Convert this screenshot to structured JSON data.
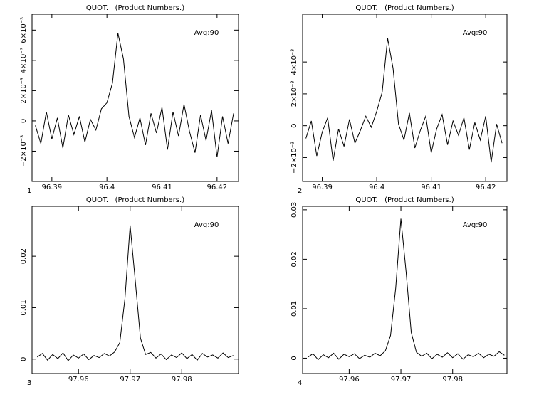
{
  "chart_data": [
    {
      "type": "line",
      "title": "QUOT.   (Product Numbers.)",
      "annotation": "Avg:90",
      "panel_label": "1",
      "x": [
        96.387,
        96.388,
        96.389,
        96.39,
        96.391,
        96.392,
        96.393,
        96.394,
        96.395,
        96.396,
        96.397,
        96.398,
        96.399,
        96.4,
        96.401,
        96.402,
        96.403,
        96.404,
        96.405,
        96.406,
        96.407,
        96.408,
        96.409,
        96.41,
        96.411,
        96.412,
        96.413,
        96.414,
        96.415,
        96.416,
        96.417,
        96.418,
        96.419,
        96.42,
        96.421,
        96.422,
        96.423
      ],
      "values": [
        -0.0003,
        -0.0015,
        0.0006,
        -0.0012,
        0.0002,
        -0.0018,
        0.0004,
        -0.0009,
        0.0003,
        -0.0014,
        0.0001,
        -0.0006,
        0.0008,
        0.0012,
        0.0025,
        0.0058,
        0.0041,
        0.0003,
        -0.0011,
        0.0002,
        -0.0016,
        0.0005,
        -0.0008,
        0.0009,
        -0.0019,
        0.0006,
        -0.001,
        0.0011,
        -0.0007,
        -0.0021,
        0.0004,
        -0.0013,
        0.0007,
        -0.0024,
        0.0003,
        -0.0015,
        0.0005
      ],
      "color": "#000000",
      "xlim": [
        96.3864,
        96.4239
      ],
      "xticks": [
        96.39,
        96.4,
        96.41,
        96.42
      ],
      "ylim": [
        -0.004,
        0.00705
      ],
      "yticks": [
        {
          "value": -0.002,
          "label": "−2×10⁻³"
        },
        0,
        {
          "value": 0.002,
          "label": "2×10⁻³"
        },
        {
          "value": 0.004,
          "label": "4×10⁻³"
        },
        {
          "value": 0.006,
          "label": "6×10⁻³"
        }
      ]
    },
    {
      "type": "line",
      "title": "QUOT.   (Product Numbers.)",
      "annotation": "Avg:90",
      "panel_label": "2",
      "x": [
        96.387,
        96.388,
        96.389,
        96.39,
        96.391,
        96.392,
        96.393,
        96.394,
        96.395,
        96.396,
        96.397,
        96.398,
        96.399,
        96.4,
        96.401,
        96.402,
        96.403,
        96.404,
        96.405,
        96.406,
        96.407,
        96.408,
        96.409,
        96.41,
        96.411,
        96.412,
        96.413,
        96.414,
        96.415,
        96.416,
        96.417,
        96.418,
        96.419,
        96.42,
        96.421,
        96.422,
        96.423
      ],
      "values": [
        -0.0008,
        0.0003,
        -0.0019,
        -0.0004,
        0.0005,
        -0.0022,
        -0.0002,
        -0.0013,
        0.0004,
        -0.0011,
        -0.0003,
        0.0006,
        -0.0001,
        0.0009,
        0.0021,
        0.0055,
        0.0036,
        0.0001,
        -0.0009,
        0.0008,
        -0.0014,
        -0.0003,
        0.0006,
        -0.0017,
        -0.0002,
        0.0007,
        -0.0012,
        0.0003,
        -0.0006,
        0.0005,
        -0.0015,
        0.0002,
        -0.0009,
        0.0006,
        -0.0023,
        0.0001,
        -0.0011
      ],
      "color": "#000000",
      "xlim": [
        96.3864,
        96.4239
      ],
      "xticks": [
        96.39,
        96.4,
        96.41,
        96.42
      ],
      "ylim": [
        -0.0035,
        0.007
      ],
      "yticks": [
        {
          "value": -0.002,
          "label": "−2×10⁻³"
        },
        0,
        {
          "value": 0.002,
          "label": "2×10⁻³"
        },
        {
          "value": 0.004,
          "label": "4×10⁻³"
        }
      ]
    },
    {
      "type": "line",
      "title": "QUOT.   (Product Numbers.)",
      "annotation": "Avg:90",
      "panel_label": "3",
      "x": [
        97.952,
        97.953,
        97.954,
        97.955,
        97.956,
        97.957,
        97.958,
        97.959,
        97.96,
        97.961,
        97.962,
        97.963,
        97.964,
        97.965,
        97.966,
        97.967,
        97.968,
        97.969,
        97.97,
        97.971,
        97.972,
        97.973,
        97.974,
        97.975,
        97.976,
        97.977,
        97.978,
        97.979,
        97.98,
        97.981,
        97.982,
        97.983,
        97.984,
        97.985,
        97.986,
        97.987,
        97.988,
        97.989,
        97.99
      ],
      "values": [
        0.0004,
        0.0011,
        -0.0002,
        0.0009,
        0.0001,
        0.0012,
        -0.0003,
        0.0008,
        0.0002,
        0.001,
        -0.0001,
        0.0007,
        0.0003,
        0.0011,
        0.0006,
        0.0014,
        0.0032,
        0.0118,
        0.026,
        0.0152,
        0.0041,
        0.0009,
        0.0013,
        0.0002,
        0.001,
        -0.0001,
        0.0008,
        0.0003,
        0.0012,
        0.0001,
        0.0009,
        -0.0002,
        0.0011,
        0.0004,
        0.0008,
        0.0002,
        0.0012,
        0.0003,
        0.0007
      ],
      "color": "#000000",
      "xlim": [
        97.951,
        97.991
      ],
      "xticks": [
        97.96,
        97.97,
        97.98
      ],
      "ylim": [
        -0.0028,
        0.0297
      ],
      "yticks": [
        0,
        0.01,
        0.02
      ]
    },
    {
      "type": "line",
      "title": "QUOT.   (Product Numbers.)",
      "annotation": "Avg:90",
      "panel_label": "4",
      "x": [
        97.952,
        97.953,
        97.954,
        97.955,
        97.956,
        97.957,
        97.958,
        97.959,
        97.96,
        97.961,
        97.962,
        97.963,
        97.964,
        97.965,
        97.966,
        97.967,
        97.968,
        97.969,
        97.97,
        97.971,
        97.972,
        97.973,
        97.974,
        97.975,
        97.976,
        97.977,
        97.978,
        97.979,
        97.98,
        97.981,
        97.982,
        97.983,
        97.984,
        97.985,
        97.986,
        97.987,
        97.988,
        97.989,
        97.99
      ],
      "values": [
        0.0002,
        0.0009,
        -0.0003,
        0.0007,
        0.0001,
        0.001,
        -0.0002,
        0.0008,
        0.0003,
        0.0009,
        -0.0001,
        0.0006,
        0.0002,
        0.001,
        0.0005,
        0.0015,
        0.0046,
        0.0142,
        0.0282,
        0.0175,
        0.0052,
        0.0012,
        0.0004,
        0.001,
        -0.0001,
        0.0008,
        0.0002,
        0.0011,
        0.0001,
        0.0009,
        -0.0002,
        0.0007,
        0.0003,
        0.001,
        0.0001,
        0.0008,
        0.0004,
        0.0013,
        0.0006
      ],
      "color": "#000000",
      "xlim": [
        97.951,
        97.9905
      ],
      "xticks": [
        97.96,
        97.97,
        97.98
      ],
      "ylim": [
        -0.0031,
        0.0307
      ],
      "yticks": [
        0,
        0.01,
        0.02,
        0.03
      ]
    }
  ]
}
